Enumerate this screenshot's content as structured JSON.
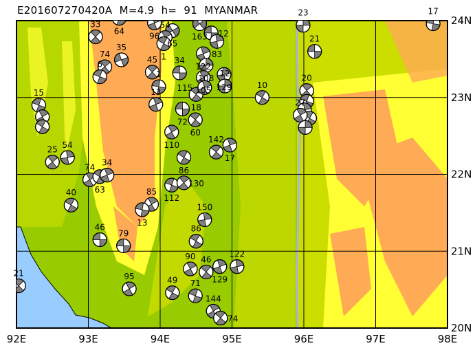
{
  "title": "E201607270420A  M=4.9  h=  91  MYANMAR",
  "map": {
    "lon_range": [
      92,
      98
    ],
    "lat_range": [
      20,
      24
    ],
    "lon_ticks": [
      "92E",
      "93E",
      "94E",
      "95E",
      "96E",
      "97E",
      "98E"
    ],
    "lat_ticks": [
      "24N",
      "23N",
      "22N",
      "21N",
      "20N"
    ],
    "colors": {
      "sea": "#99ccff",
      "lowland": "#99cc00",
      "plain": "#ccdd00",
      "hill": "#ffff33",
      "upland": "#ffaa55",
      "river": "#aab4dd",
      "ball_fill": "#808080"
    }
  },
  "events": [
    {
      "label": "64",
      "lon": 93.43,
      "lat": 24.03,
      "strike": 20
    },
    {
      "label": "96",
      "lon": 93.92,
      "lat": 23.97,
      "strike": 70
    },
    {
      "label": "163",
      "lon": 94.55,
      "lat": 23.96,
      "strike": -40
    },
    {
      "label": "23",
      "lon": 95.99,
      "lat": 23.94,
      "strike": 90
    },
    {
      "label": "17",
      "lon": 97.8,
      "lat": 23.96,
      "strike": 10
    },
    {
      "label": "33",
      "lon": 93.1,
      "lat": 23.79,
      "strike": 45
    },
    {
      "label": "65",
      "lon": 94.17,
      "lat": 23.87,
      "strike": -30
    },
    {
      "label": "54",
      "lon": 94.07,
      "lat": 23.78,
      "strike": 60
    },
    {
      "label": "12",
      "lon": 94.71,
      "lat": 23.84,
      "strike": 0
    },
    {
      "label": "83",
      "lon": 94.79,
      "lat": 23.73,
      "strike": 80
    },
    {
      "label": "21",
      "lon": 96.15,
      "lat": 23.6,
      "strike": 0
    },
    {
      "label": "1",
      "lon": 94.05,
      "lat": 23.7,
      "strike": 30
    },
    {
      "label": "35",
      "lon": 93.46,
      "lat": 23.49,
      "strike": -20
    },
    {
      "label": "74",
      "lon": 93.23,
      "lat": 23.4,
      "strike": 50
    },
    {
      "label": "6",
      "lon": 93.16,
      "lat": 23.27,
      "strike": 20
    },
    {
      "label": "122",
      "lon": 94.6,
      "lat": 23.57,
      "strike": 70
    },
    {
      "label": "108",
      "lon": 94.64,
      "lat": 23.42,
      "strike": 90
    },
    {
      "label": "45",
      "lon": 93.89,
      "lat": 23.33,
      "strike": 45
    },
    {
      "label": "34",
      "lon": 94.27,
      "lat": 23.32,
      "strike": 0
    },
    {
      "label": "129",
      "lon": 94.89,
      "lat": 23.3,
      "strike": 80
    },
    {
      "label": "1",
      "lon": 93.98,
      "lat": 23.14,
      "strike": 10
    },
    {
      "label": "105",
      "lon": 94.6,
      "lat": 23.26,
      "strike": 60
    },
    {
      "label": "18",
      "lon": 94.5,
      "lat": 23.04,
      "strike": 40
    },
    {
      "label": "115",
      "lon": 94.62,
      "lat": 23.13,
      "strike": 70
    },
    {
      "label": "12",
      "lon": 94.9,
      "lat": 23.15,
      "strike": 90
    },
    {
      "label": "10",
      "lon": 95.42,
      "lat": 23.0,
      "strike": 30
    },
    {
      "label": "20",
      "lon": 96.04,
      "lat": 23.09,
      "strike": 50
    },
    {
      "label": "",
      "lon": 96.04,
      "lat": 22.95,
      "strike": 20
    },
    {
      "label": "",
      "lon": 96.01,
      "lat": 22.84,
      "strike": 80
    },
    {
      "label": "",
      "lon": 96.08,
      "lat": 22.73,
      "strike": 30
    },
    {
      "label": "27",
      "lon": 95.95,
      "lat": 22.77,
      "strike": 60
    },
    {
      "label": "",
      "lon": 96.02,
      "lat": 22.61,
      "strike": 90
    },
    {
      "label": "15",
      "lon": 92.31,
      "lat": 22.9,
      "strike": 20
    },
    {
      "label": "",
      "lon": 92.36,
      "lat": 22.75,
      "strike": 60
    },
    {
      "label": "",
      "lon": 92.36,
      "lat": 22.62,
      "strike": 30
    },
    {
      "label": "13",
      "lon": 93.94,
      "lat": 22.91,
      "strike": 70
    },
    {
      "label": "72",
      "lon": 94.31,
      "lat": 22.85,
      "strike": 0
    },
    {
      "label": "60",
      "lon": 94.49,
      "lat": 22.71,
      "strike": 40
    },
    {
      "label": "110",
      "lon": 94.16,
      "lat": 22.55,
      "strike": 60
    },
    {
      "label": "142",
      "lon": 94.78,
      "lat": 22.29,
      "strike": 40
    },
    {
      "label": "17",
      "lon": 94.97,
      "lat": 22.38,
      "strike": 70
    },
    {
      "label": "86",
      "lon": 94.33,
      "lat": 22.22,
      "strike": 30
    },
    {
      "label": "25",
      "lon": 92.5,
      "lat": 22.16,
      "strike": 50
    },
    {
      "label": "54",
      "lon": 92.71,
      "lat": 22.22,
      "strike": 80
    },
    {
      "label": "74",
      "lon": 93.02,
      "lat": 21.93,
      "strike": 60
    },
    {
      "label": "63",
      "lon": 93.16,
      "lat": 21.97,
      "strike": 30
    },
    {
      "label": "34",
      "lon": 93.26,
      "lat": 21.99,
      "strike": 70
    },
    {
      "label": "112",
      "lon": 94.16,
      "lat": 21.86,
      "strike": 20
    },
    {
      "label": "130",
      "lon": 94.33,
      "lat": 21.89,
      "strike": 50
    },
    {
      "label": "40",
      "lon": 92.76,
      "lat": 21.6,
      "strike": 30
    },
    {
      "label": "85",
      "lon": 93.88,
      "lat": 21.61,
      "strike": 60
    },
    {
      "label": "13",
      "lon": 93.75,
      "lat": 21.54,
      "strike": 10
    },
    {
      "label": "150",
      "lon": 94.62,
      "lat": 21.41,
      "strike": 80
    },
    {
      "label": "46",
      "lon": 93.16,
      "lat": 21.15,
      "strike": 0
    },
    {
      "label": "79",
      "lon": 93.49,
      "lat": 21.07,
      "strike": 0
    },
    {
      "label": "86",
      "lon": 94.5,
      "lat": 21.13,
      "strike": 30
    },
    {
      "label": "90",
      "lon": 94.42,
      "lat": 20.77,
      "strike": 60
    },
    {
      "label": "46",
      "lon": 94.64,
      "lat": 20.73,
      "strike": 40
    },
    {
      "label": "129",
      "lon": 94.83,
      "lat": 20.8,
      "strike": 70
    },
    {
      "label": "122",
      "lon": 95.07,
      "lat": 20.8,
      "strike": 80
    },
    {
      "label": "21",
      "lon": 92.03,
      "lat": 20.55,
      "strike": 45
    },
    {
      "label": "95",
      "lon": 93.57,
      "lat": 20.51,
      "strike": 60
    },
    {
      "label": "49",
      "lon": 94.17,
      "lat": 20.46,
      "strike": 30
    },
    {
      "label": "71",
      "lon": 94.49,
      "lat": 20.42,
      "strike": 20
    },
    {
      "label": "144",
      "lon": 94.74,
      "lat": 20.22,
      "strike": 60
    },
    {
      "label": "74",
      "lon": 94.84,
      "lat": 20.13,
      "strike": 40
    }
  ]
}
